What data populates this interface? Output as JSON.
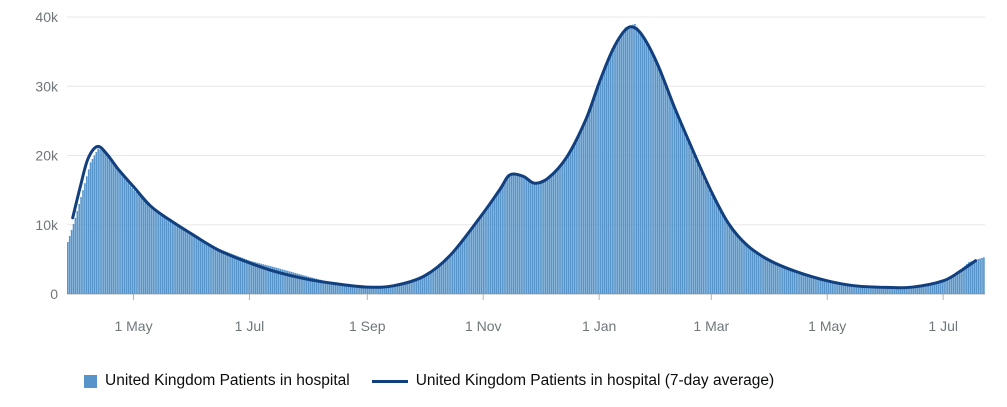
{
  "colors": {
    "bars": "#5694ca",
    "line": "#12407f",
    "grid": "#e8e8e8",
    "axis_text": "#6f777b"
  },
  "legend": {
    "bars_label": "United Kingdom Patients in hospital",
    "line_label": "United Kingdom Patients in hospital (7-day average)"
  },
  "chart_data": {
    "type": "bar",
    "title": "",
    "xlabel": "",
    "ylabel": "",
    "x_range": [
      "2020-03-27",
      "2021-07-23"
    ],
    "ylim": [
      0,
      40000
    ],
    "yticks": [
      0,
      10000,
      20000,
      30000,
      40000
    ],
    "ytick_labels": [
      "0",
      "10k",
      "20k",
      "30k",
      "40k"
    ],
    "xticks": [
      "2020-05-01",
      "2020-07-01",
      "2020-09-01",
      "2020-11-01",
      "2021-01-01",
      "2021-03-01",
      "2021-05-01",
      "2021-07-01"
    ],
    "xtick_labels": [
      "1 May",
      "1 Jul",
      "1 Sep",
      "1 Nov",
      "1 Jan",
      "1 Mar",
      "1 May",
      "1 Jul"
    ],
    "grid": "horizontal",
    "legend_position": "bottom-left",
    "series": [
      {
        "kind": "bar",
        "name": "United Kingdom Patients in hospital",
        "points": [
          [
            "2020-03-27",
            7500
          ],
          [
            "2020-03-31",
            11000
          ],
          [
            "2020-04-04",
            15000
          ],
          [
            "2020-04-08",
            19000
          ],
          [
            "2020-04-12",
            21000
          ],
          [
            "2020-04-16",
            20500
          ],
          [
            "2020-04-20",
            19000
          ],
          [
            "2020-04-25",
            17000
          ],
          [
            "2020-05-01",
            15000
          ],
          [
            "2020-05-10",
            12500
          ],
          [
            "2020-05-20",
            10500
          ],
          [
            "2020-06-01",
            8500
          ],
          [
            "2020-06-15",
            6500
          ],
          [
            "2020-07-01",
            4800
          ],
          [
            "2020-07-15",
            3800
          ],
          [
            "2020-08-01",
            2500
          ],
          [
            "2020-08-15",
            1500
          ],
          [
            "2020-09-01",
            1000
          ],
          [
            "2020-09-15",
            1200
          ],
          [
            "2020-10-01",
            2500
          ],
          [
            "2020-10-15",
            5500
          ],
          [
            "2020-11-01",
            11500
          ],
          [
            "2020-11-10",
            15500
          ],
          [
            "2020-11-15",
            17200
          ],
          [
            "2020-11-22",
            17000
          ],
          [
            "2020-11-28",
            16000
          ],
          [
            "2020-12-05",
            16800
          ],
          [
            "2020-12-15",
            19500
          ],
          [
            "2020-12-25",
            25000
          ],
          [
            "2021-01-01",
            30500
          ],
          [
            "2021-01-08",
            35500
          ],
          [
            "2021-01-15",
            38500
          ],
          [
            "2021-01-20",
            39000
          ],
          [
            "2021-01-25",
            37000
          ],
          [
            "2021-02-01",
            33000
          ],
          [
            "2021-02-10",
            26500
          ],
          [
            "2021-02-20",
            20000
          ],
          [
            "2021-03-01",
            14500
          ],
          [
            "2021-03-10",
            10000
          ],
          [
            "2021-03-20",
            7000
          ],
          [
            "2021-04-01",
            4700
          ],
          [
            "2021-04-15",
            3200
          ],
          [
            "2021-05-01",
            1800
          ],
          [
            "2021-05-15",
            1100
          ],
          [
            "2021-06-01",
            950
          ],
          [
            "2021-06-15",
            1000
          ],
          [
            "2021-07-01",
            1900
          ],
          [
            "2021-07-10",
            3300
          ],
          [
            "2021-07-15",
            4600
          ],
          [
            "2021-07-23",
            5300
          ]
        ]
      },
      {
        "kind": "line",
        "name": "United Kingdom Patients in hospital (7-day average)",
        "points": [
          [
            "2020-03-30",
            11000
          ],
          [
            "2020-04-03",
            15500
          ],
          [
            "2020-04-07",
            19500
          ],
          [
            "2020-04-12",
            21300
          ],
          [
            "2020-04-17",
            20200
          ],
          [
            "2020-04-23",
            18000
          ],
          [
            "2020-05-01",
            15500
          ],
          [
            "2020-05-10",
            12700
          ],
          [
            "2020-05-20",
            10700
          ],
          [
            "2020-06-01",
            8600
          ],
          [
            "2020-06-15",
            6300
          ],
          [
            "2020-07-01",
            4500
          ],
          [
            "2020-07-15",
            3200
          ],
          [
            "2020-08-01",
            2100
          ],
          [
            "2020-08-15",
            1500
          ],
          [
            "2020-09-01",
            1000
          ],
          [
            "2020-09-15",
            1200
          ],
          [
            "2020-10-01",
            2600
          ],
          [
            "2020-10-15",
            5700
          ],
          [
            "2020-11-01",
            11700
          ],
          [
            "2020-11-10",
            15200
          ],
          [
            "2020-11-15",
            17200
          ],
          [
            "2020-11-22",
            17000
          ],
          [
            "2020-11-28",
            16000
          ],
          [
            "2020-12-05",
            16700
          ],
          [
            "2020-12-15",
            19800
          ],
          [
            "2020-12-25",
            25200
          ],
          [
            "2021-01-01",
            30500
          ],
          [
            "2021-01-08",
            35200
          ],
          [
            "2021-01-15",
            38200
          ],
          [
            "2021-01-20",
            38400
          ],
          [
            "2021-01-25",
            36800
          ],
          [
            "2021-02-01",
            33000
          ],
          [
            "2021-02-10",
            26700
          ],
          [
            "2021-02-20",
            20300
          ],
          [
            "2021-03-01",
            14800
          ],
          [
            "2021-03-10",
            10200
          ],
          [
            "2021-03-20",
            7000
          ],
          [
            "2021-04-01",
            4800
          ],
          [
            "2021-04-15",
            3200
          ],
          [
            "2021-05-01",
            1900
          ],
          [
            "2021-05-15",
            1200
          ],
          [
            "2021-06-01",
            950
          ],
          [
            "2021-06-15",
            1000
          ],
          [
            "2021-07-01",
            1900
          ],
          [
            "2021-07-10",
            3300
          ],
          [
            "2021-07-18",
            4800
          ]
        ]
      }
    ]
  }
}
